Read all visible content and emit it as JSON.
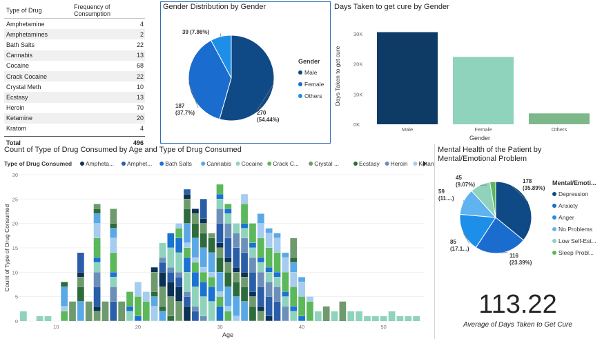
{
  "table": {
    "headers": [
      "Type of Drug",
      "Frequency of Consumption"
    ],
    "rows": [
      {
        "name": "Amphetamine",
        "value": "4"
      },
      {
        "name": "Amphetamines",
        "value": "2"
      },
      {
        "name": "Bath Salts",
        "value": "22"
      },
      {
        "name": "Cannabis",
        "value": "13"
      },
      {
        "name": "Cocaine",
        "value": "68"
      },
      {
        "name": "Crack Cocaine",
        "value": "22"
      },
      {
        "name": "Crystal Meth",
        "value": "10"
      },
      {
        "name": "Ecstasy",
        "value": "13"
      },
      {
        "name": "Heroin",
        "value": "70"
      },
      {
        "name": "Ketamine",
        "value": "20"
      },
      {
        "name": "Kratom",
        "value": "4"
      }
    ],
    "total_label": "Total",
    "total_value": "496"
  },
  "kpi": {
    "value": "113.22",
    "label": "Average of Days Taken to Get Cure"
  },
  "chart_data": [
    {
      "type": "pie",
      "title": "Gender Distribution by Gender",
      "legend_title": "Gender",
      "legend_placement": "right",
      "labels": [
        "Male",
        "Female",
        "Others"
      ],
      "values": [
        270,
        187,
        39
      ],
      "data_labels": [
        "270\n(54.44%)",
        "187\n(37.7%)",
        "39 (7.86%)"
      ],
      "colors": [
        "#0f4a86",
        "#1a6dcf",
        "#1e8fe8"
      ]
    },
    {
      "type": "bar",
      "title": "Days Taken to get cure by Gender",
      "xlabel": "Gender",
      "ylabel": "Days Taken to get cure",
      "categories": [
        "Male",
        "Female",
        "Others"
      ],
      "values": [
        30500,
        22300,
        3600
      ],
      "ylim": [
        0,
        32000
      ],
      "yticks": [
        "0K",
        "10K",
        "20K",
        "30K"
      ],
      "colors": [
        "#0d3b66",
        "#8fd3bd",
        "#7cb88a"
      ]
    },
    {
      "type": "bar",
      "stacked": true,
      "title": "Count of Type of Drug Consumed by Age and Type of Drug Consumed",
      "legend_title": "Type of Drug Consumed",
      "legend_placement": "top",
      "legend_labels": [
        "Ampheta...",
        "Amphet...",
        "Bath Salts",
        "Cannabis",
        "Cocaine",
        "Crack C...",
        "Crystal ...",
        "Ecstasy",
        "Heroin",
        "Ketamine"
      ],
      "xlabel": "Age",
      "ylabel": "Count of Type of Drug Consumed",
      "xlim": [
        5,
        55
      ],
      "ylim": [
        0,
        30
      ],
      "xticks": [
        "10",
        "20",
        "30",
        "40",
        "50"
      ],
      "yticks": [
        "0",
        "5",
        "10",
        "15",
        "20",
        "25",
        "30"
      ],
      "series": [
        {
          "name": "Heroin",
          "color": "#6b8fb8"
        },
        {
          "name": "Cocaine",
          "color": "#8fd3bd"
        },
        {
          "name": "Bath Salts",
          "color": "#1a73d1"
        },
        {
          "name": "Crack C...",
          "color": "#5bb85b"
        },
        {
          "name": "Ketamine",
          "color": "#a6ccef"
        },
        {
          "name": "Cannabis",
          "color": "#5aa8e6"
        },
        {
          "name": "Ecstasy",
          "color": "#2e6b3c"
        },
        {
          "name": "Crystal ...",
          "color": "#6f9a6d"
        },
        {
          "name": "Ampheta...",
          "color": "#0b3154"
        },
        {
          "name": "Amphet...",
          "color": "#2a5ea8"
        }
      ],
      "ages": [
        6,
        8,
        9,
        11,
        12,
        13,
        14,
        15,
        16,
        17,
        18,
        19,
        20,
        21,
        22,
        23,
        24,
        25,
        26,
        27,
        28,
        29,
        30,
        31,
        32,
        33,
        34,
        35,
        36,
        37,
        38,
        39,
        40,
        41,
        42,
        43,
        44,
        45,
        46,
        47,
        48,
        49,
        50,
        51,
        52,
        53,
        54
      ],
      "totals": [
        2,
        1,
        1,
        8,
        4,
        14,
        4,
        24,
        4,
        23,
        4,
        6,
        8,
        6,
        11,
        16,
        18,
        20,
        27,
        23,
        25,
        18,
        28,
        24,
        20,
        26,
        20,
        22,
        19,
        18,
        14,
        17,
        9,
        5,
        2,
        3,
        2,
        4,
        2,
        2,
        1,
        1,
        1,
        2,
        1,
        1,
        1
      ]
    },
    {
      "type": "pie",
      "title": "Mental Health of the Patient by Mental/Emotional Problem",
      "legend_title": "Mental/Emoti...",
      "legend_placement": "right",
      "labels": [
        "Depression",
        "Anxiety",
        "Anger",
        "No Problems",
        "Low Self-Est...",
        "Sleep Probl..."
      ],
      "values": [
        178,
        116,
        85,
        59,
        45,
        13
      ],
      "data_labels": [
        "178\n(35.89%)",
        "116\n(23.39%)",
        "85\n(17.1...)",
        "59\n(11....)",
        "45\n(9.07%)",
        ""
      ],
      "colors": [
        "#0f4a86",
        "#1a6dcf",
        "#1e8fe8",
        "#5fb3ee",
        "#8fd3bd",
        "#5bb85b"
      ]
    }
  ]
}
